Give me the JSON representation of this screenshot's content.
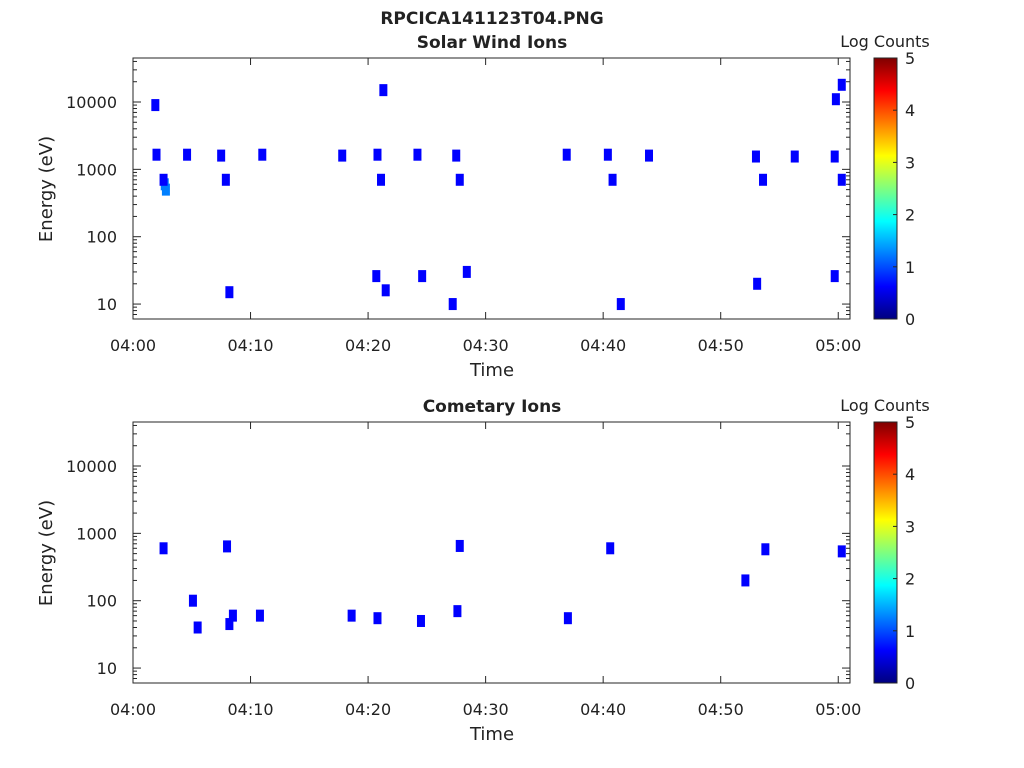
{
  "figure_title": "RPCICA141123T04.PNG",
  "colormap": [
    "#00007f",
    "#0000ff",
    "#007fff",
    "#00ffff",
    "#7fff7f",
    "#ffff00",
    "#ff7f00",
    "#ff0000",
    "#7f0000"
  ],
  "chart_data": [
    {
      "type": "heatmap",
      "title": "Solar Wind Ions",
      "xlabel": "Time",
      "ylabel": "Energy (eV)",
      "ylim": [
        6,
        45000
      ],
      "yscale": "log",
      "xlim": [
        "04:00",
        "05:01"
      ],
      "xticks": [
        "04:00",
        "04:10",
        "04:20",
        "04:30",
        "04:40",
        "04:50",
        "05:00"
      ],
      "yticks": [
        10,
        100,
        1000,
        10000
      ],
      "ytick_labels": [
        "10",
        "100",
        "1000",
        "10000"
      ],
      "colorbar": {
        "label": "Log Counts",
        "range": [
          0,
          5
        ],
        "ticks": [
          "0",
          "1",
          "2",
          "3",
          "4",
          "5"
        ]
      },
      "points": [
        {
          "t": 2.7,
          "e": 600,
          "v": 1.4
        },
        {
          "t": 2.8,
          "e": 500,
          "v": 1.0
        },
        {
          "t": 2.6,
          "e": 700,
          "v": 0.8
        },
        {
          "t": 2.0,
          "e": 1650,
          "v": 0.6
        },
        {
          "t": 4.6,
          "e": 1650,
          "v": 0.8
        },
        {
          "t": 7.5,
          "e": 1600,
          "v": 0.6
        },
        {
          "t": 7.9,
          "e": 700,
          "v": 0.6
        },
        {
          "t": 11.0,
          "e": 1650,
          "v": 0.6
        },
        {
          "t": 17.8,
          "e": 1600,
          "v": 0.6
        },
        {
          "t": 20.8,
          "e": 1650,
          "v": 0.7
        },
        {
          "t": 21.1,
          "e": 700,
          "v": 0.6
        },
        {
          "t": 24.2,
          "e": 1650,
          "v": 0.6
        },
        {
          "t": 27.5,
          "e": 1600,
          "v": 0.7
        },
        {
          "t": 27.8,
          "e": 700,
          "v": 0.8
        },
        {
          "t": 36.9,
          "e": 1650,
          "v": 0.6
        },
        {
          "t": 40.4,
          "e": 1650,
          "v": 0.6
        },
        {
          "t": 40.8,
          "e": 700,
          "v": 0.7
        },
        {
          "t": 43.9,
          "e": 1600,
          "v": 0.5
        },
        {
          "t": 53.6,
          "e": 700,
          "v": 0.7
        },
        {
          "t": 53.0,
          "e": 1550,
          "v": 0.5
        },
        {
          "t": 56.3,
          "e": 1550,
          "v": 0.5
        },
        {
          "t": 59.7,
          "e": 1550,
          "v": 0.5
        },
        {
          "t": 60.3,
          "e": 700,
          "v": 0.9
        },
        {
          "t": 8.2,
          "e": 15,
          "v": 0.5
        },
        {
          "t": 27.2,
          "e": 10,
          "v": 0.5
        },
        {
          "t": 21.5,
          "e": 16,
          "v": 0.5
        },
        {
          "t": 41.5,
          "e": 10,
          "v": 0.5
        },
        {
          "t": 53.1,
          "e": 20,
          "v": 0.5
        },
        {
          "t": 59.7,
          "e": 26,
          "v": 0.5
        },
        {
          "t": 20.7,
          "e": 26,
          "v": 0.5
        },
        {
          "t": 24.6,
          "e": 26,
          "v": 0.5
        },
        {
          "t": 28.4,
          "e": 30,
          "v": 0.5
        },
        {
          "t": 1.9,
          "e": 9000,
          "v": 0.5
        },
        {
          "t": 21.3,
          "e": 15000,
          "v": 0.5
        },
        {
          "t": 59.8,
          "e": 11000,
          "v": 0.5
        },
        {
          "t": 60.3,
          "e": 18000,
          "v": 0.5
        }
      ]
    },
    {
      "type": "heatmap",
      "title": "Cometary Ions",
      "xlabel": "Time",
      "ylabel": "Energy (eV)",
      "ylim": [
        6,
        45000
      ],
      "yscale": "log",
      "xlim": [
        "04:00",
        "05:01"
      ],
      "xticks": [
        "04:00",
        "04:10",
        "04:20",
        "04:30",
        "04:40",
        "04:50",
        "05:00"
      ],
      "yticks": [
        10,
        100,
        1000,
        10000
      ],
      "ytick_labels": [
        "10",
        "100",
        "1000",
        "10000"
      ],
      "colorbar": {
        "label": "Log Counts",
        "range": [
          0,
          5
        ],
        "ticks": [
          "0",
          "1",
          "2",
          "3",
          "4",
          "5"
        ]
      },
      "points": [
        {
          "t": 8.2,
          "e": 45,
          "v": 0.7
        },
        {
          "t": 8.5,
          "e": 60,
          "v": 0.6
        },
        {
          "t": 5.1,
          "e": 100,
          "v": 0.5
        },
        {
          "t": 5.5,
          "e": 40,
          "v": 0.5
        },
        {
          "t": 10.8,
          "e": 60,
          "v": 0.5
        },
        {
          "t": 18.6,
          "e": 60,
          "v": 0.5
        },
        {
          "t": 20.8,
          "e": 55,
          "v": 0.5
        },
        {
          "t": 24.5,
          "e": 50,
          "v": 0.6
        },
        {
          "t": 27.6,
          "e": 70,
          "v": 0.5
        },
        {
          "t": 37.0,
          "e": 55,
          "v": 0.5
        },
        {
          "t": 2.6,
          "e": 600,
          "v": 0.5
        },
        {
          "t": 8.0,
          "e": 640,
          "v": 0.5
        },
        {
          "t": 27.8,
          "e": 650,
          "v": 0.5
        },
        {
          "t": 40.6,
          "e": 600,
          "v": 0.5
        },
        {
          "t": 53.8,
          "e": 580,
          "v": 0.5
        },
        {
          "t": 60.3,
          "e": 540,
          "v": 0.5
        },
        {
          "t": 52.1,
          "e": 200,
          "v": 0.5
        }
      ]
    }
  ]
}
